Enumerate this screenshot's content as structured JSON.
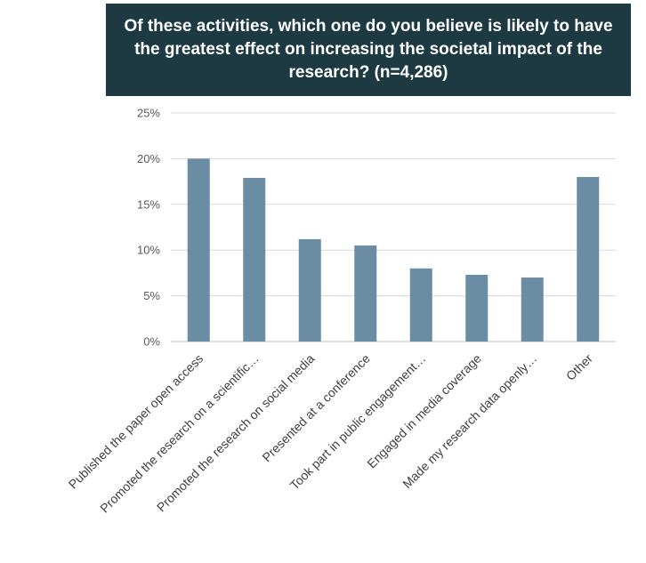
{
  "chart_data": {
    "type": "bar",
    "title": "Of these activities, which one do you believe is likely to have the greatest effect on increasing the societal impact of the research? (n=4,286)",
    "categories": [
      "Published the paper open access",
      "Promoted the research on a scientific…",
      "Promoted the research on social media",
      "Presented at a conference",
      "Took part in public engagement…",
      "Engaged in media coverage",
      "Made my research data openly…",
      "Other"
    ],
    "values": [
      20.0,
      17.9,
      11.2,
      10.5,
      8.0,
      7.3,
      7.0,
      18.0
    ],
    "ylim": [
      0,
      25
    ],
    "yticks": [
      0,
      5,
      10,
      15,
      20,
      25
    ],
    "ytick_labels": [
      "0%",
      "5%",
      "10%",
      "15%",
      "20%",
      "25%"
    ],
    "grid": true,
    "bar_color": "#6a8da4"
  }
}
